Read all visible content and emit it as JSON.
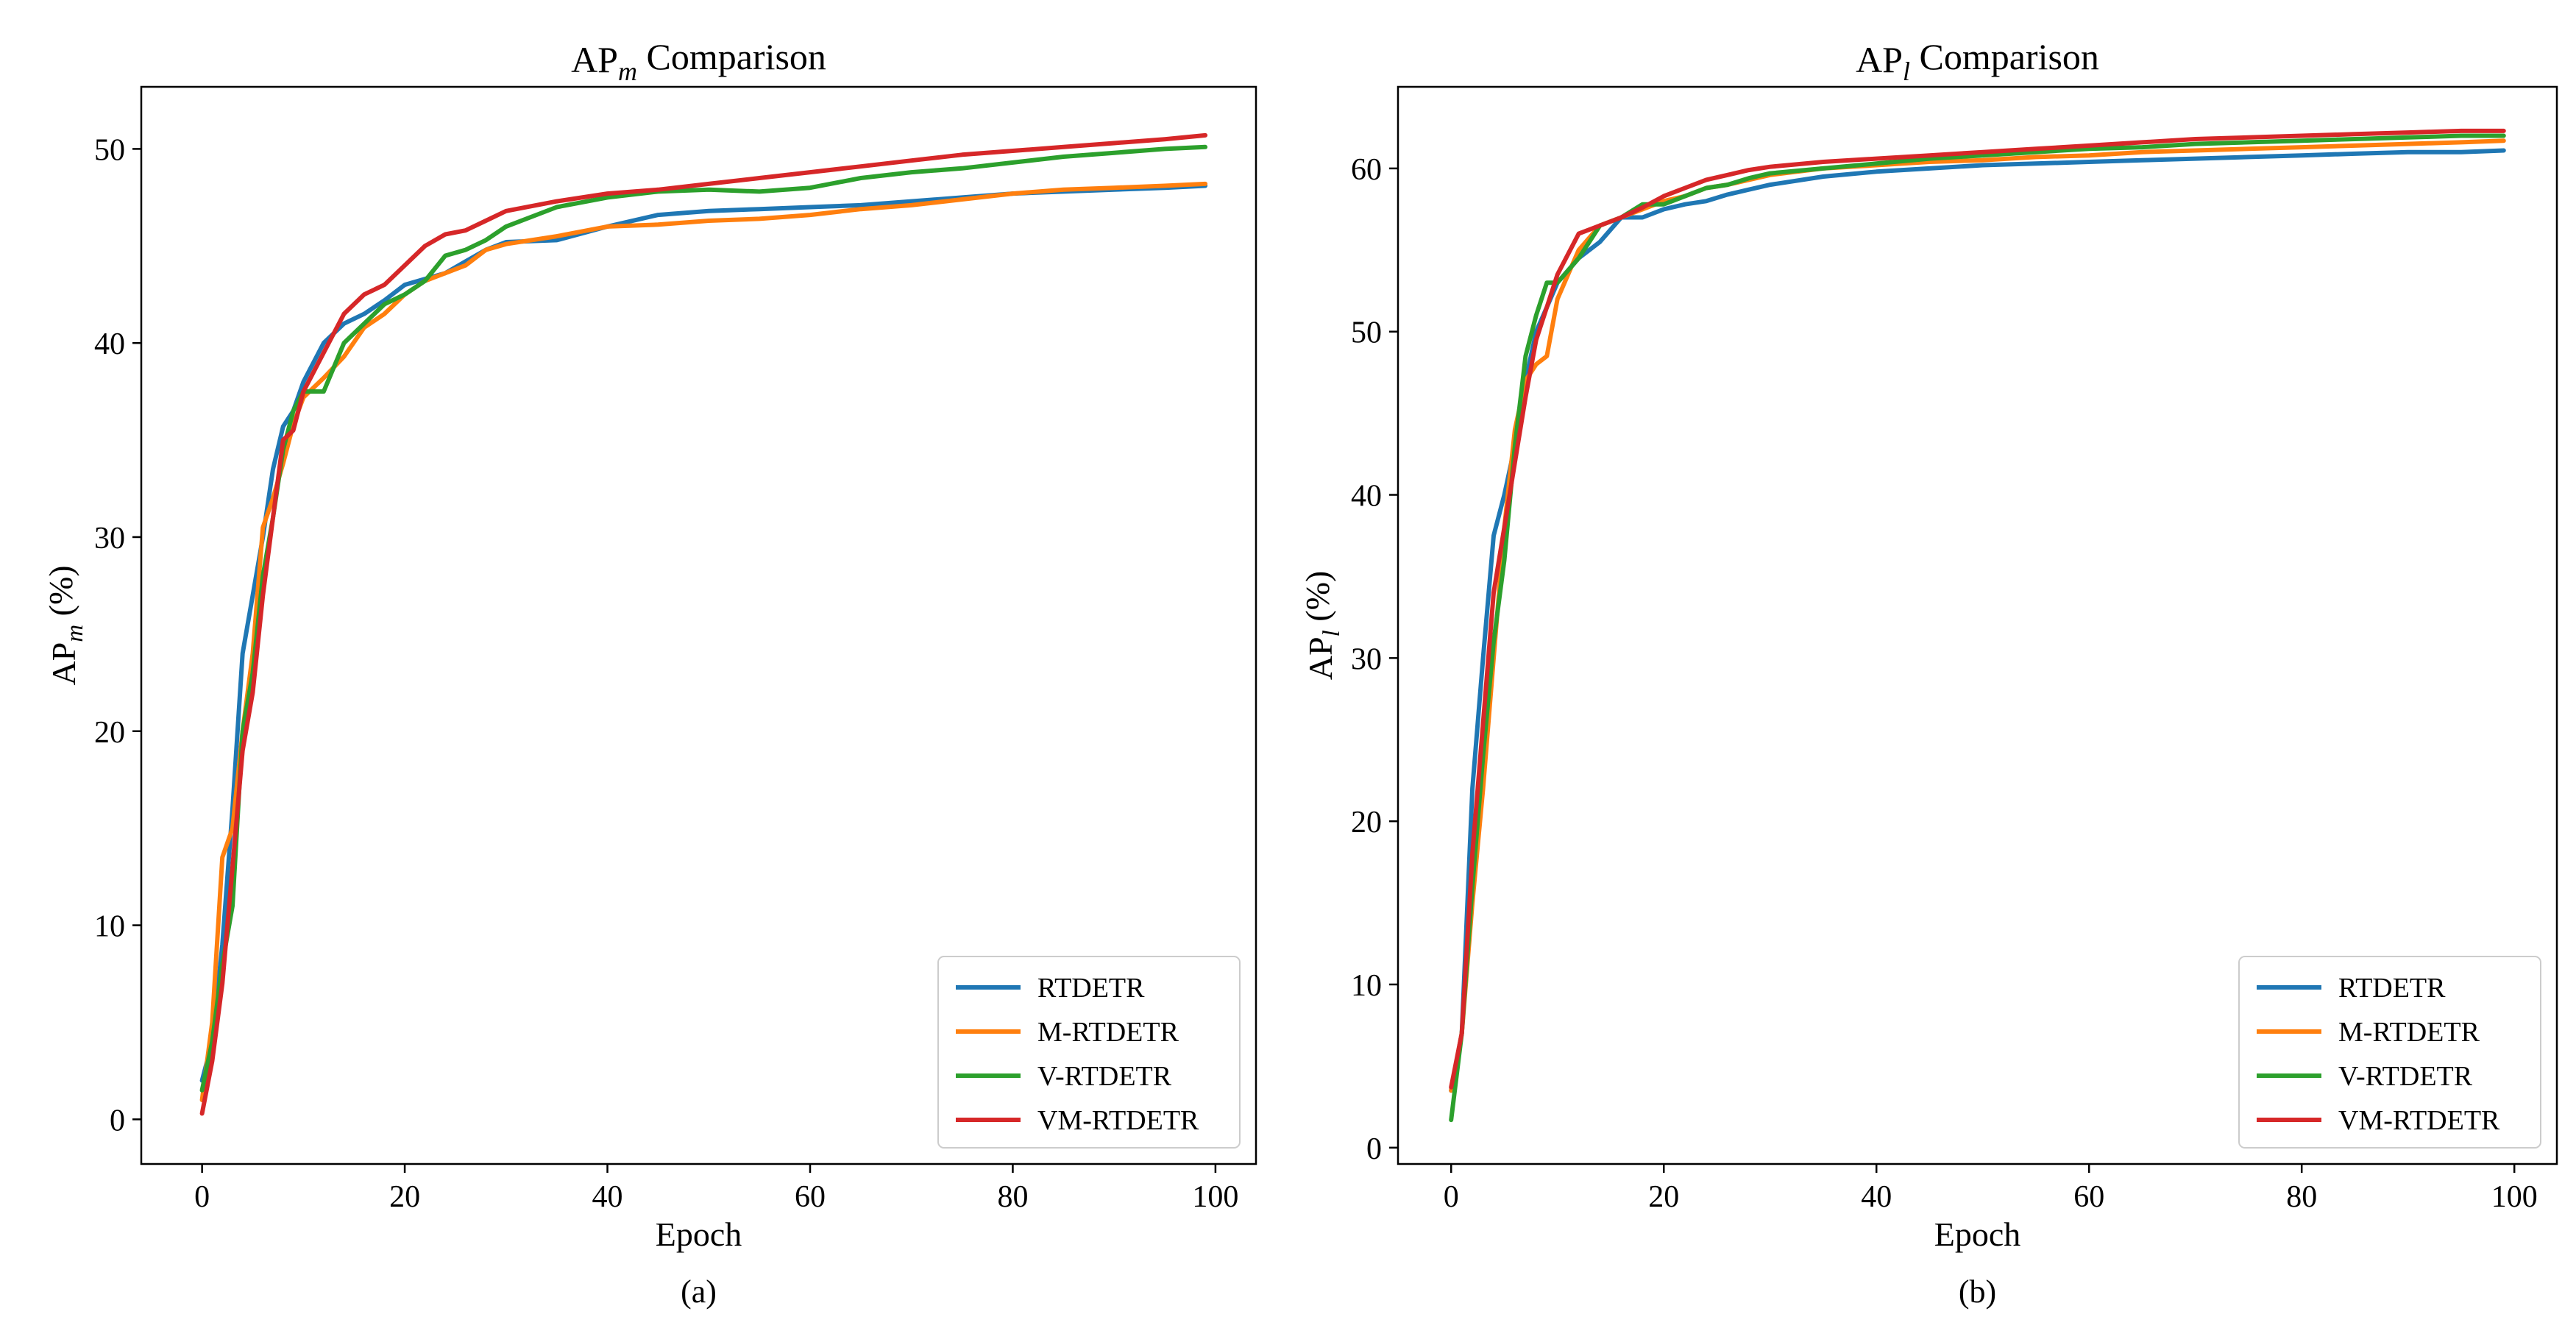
{
  "chart_data": [
    {
      "type": "line",
      "caption": "(a)",
      "title": {
        "prefix": "AP",
        "sub": "m",
        "suffix": " Comparison"
      },
      "ylabel": {
        "prefix": "AP",
        "sub": "m",
        "suffix": " (%)"
      },
      "xlabel": "Epoch",
      "xlim": [
        -6,
        104
      ],
      "ylim": [
        -2.3,
        53.2
      ],
      "xticks": [
        0,
        20,
        40,
        60,
        80,
        100
      ],
      "yticks": [
        0,
        10,
        20,
        30,
        40,
        50
      ],
      "legend": "lower-right",
      "series": [
        {
          "name": "RTDETR",
          "color": "#1f77b4",
          "x": [
            0,
            1,
            2,
            3,
            4,
            5,
            6,
            7,
            8,
            9,
            10,
            12,
            14,
            16,
            18,
            20,
            22,
            24,
            26,
            28,
            30,
            35,
            40,
            45,
            50,
            55,
            60,
            65,
            70,
            75,
            80,
            85,
            90,
            95,
            99
          ],
          "y": [
            2,
            4,
            9,
            16,
            24,
            27,
            30,
            33.5,
            35.7,
            36.5,
            38,
            40,
            41,
            41.5,
            42.2,
            43,
            43.3,
            43.6,
            44.2,
            44.8,
            45.2,
            45.3,
            46,
            46.6,
            46.8,
            46.9,
            47,
            47.1,
            47.3,
            47.5,
            47.7,
            47.8,
            47.9,
            48,
            48.1
          ]
        },
        {
          "name": "M-RTDETR",
          "color": "#ff7f0e",
          "x": [
            0,
            1,
            2,
            3,
            4,
            5,
            6,
            7,
            8,
            9,
            10,
            12,
            14,
            16,
            18,
            20,
            22,
            24,
            26,
            28,
            30,
            35,
            40,
            45,
            50,
            55,
            60,
            65,
            70,
            75,
            80,
            85,
            90,
            95,
            99
          ],
          "y": [
            1,
            5,
            13.5,
            15,
            20,
            24,
            30.5,
            32,
            33.8,
            35.8,
            37.2,
            38.2,
            39.3,
            40.8,
            41.5,
            42.5,
            43.2,
            43.6,
            44,
            44.8,
            45.1,
            45.5,
            46,
            46.1,
            46.3,
            46.4,
            46.6,
            46.9,
            47.1,
            47.4,
            47.7,
            47.9,
            48,
            48.1,
            48.2
          ]
        },
        {
          "name": "V-RTDETR",
          "color": "#2ca02c",
          "x": [
            0,
            1,
            2,
            3,
            4,
            5,
            6,
            7,
            8,
            9,
            10,
            12,
            14,
            16,
            18,
            20,
            22,
            24,
            26,
            28,
            30,
            35,
            40,
            45,
            50,
            55,
            60,
            65,
            70,
            75,
            80,
            85,
            90,
            95,
            99
          ],
          "y": [
            1.5,
            4,
            8,
            11,
            20,
            23,
            28,
            31,
            34.5,
            36.5,
            37.5,
            37.5,
            40,
            41,
            42,
            42.5,
            43.2,
            44.5,
            44.8,
            45.3,
            46,
            47,
            47.5,
            47.8,
            47.9,
            47.8,
            48,
            48.5,
            48.8,
            49,
            49.3,
            49.6,
            49.8,
            50,
            50.1
          ]
        },
        {
          "name": "VM-RTDETR",
          "color": "#d62728",
          "x": [
            0,
            1,
            2,
            3,
            4,
            5,
            6,
            7,
            8,
            9,
            10,
            12,
            14,
            16,
            18,
            20,
            22,
            24,
            26,
            28,
            30,
            35,
            40,
            45,
            50,
            55,
            60,
            65,
            70,
            75,
            80,
            85,
            90,
            95,
            99
          ],
          "y": [
            0.3,
            3,
            7,
            13,
            19,
            22,
            27,
            31,
            35,
            35.5,
            37.5,
            39.5,
            41.5,
            42.5,
            43,
            44,
            45,
            45.6,
            45.8,
            46.3,
            46.8,
            47.3,
            47.7,
            47.9,
            48.2,
            48.5,
            48.8,
            49.1,
            49.4,
            49.7,
            49.9,
            50.1,
            50.3,
            50.5,
            50.7
          ]
        }
      ]
    },
    {
      "type": "line",
      "caption": "(b)",
      "title": {
        "prefix": "AP",
        "sub": "l",
        "suffix": " Comparison"
      },
      "ylabel": {
        "prefix": "AP",
        "sub": "l",
        "suffix": " (%)"
      },
      "xlabel": "Epoch",
      "xlim": [
        -5,
        104
      ],
      "ylim": [
        -1.0,
        65.0
      ],
      "xticks": [
        0,
        20,
        40,
        60,
        80,
        100
      ],
      "yticks": [
        0,
        10,
        20,
        30,
        40,
        50,
        60
      ],
      "legend": "lower-right",
      "series": [
        {
          "name": "RTDETR",
          "color": "#1f77b4",
          "x": [
            0,
            1,
            2,
            3,
            4,
            5,
            6,
            7,
            8,
            9,
            10,
            12,
            14,
            16,
            18,
            20,
            22,
            24,
            26,
            28,
            30,
            35,
            40,
            45,
            50,
            55,
            60,
            65,
            70,
            75,
            80,
            85,
            90,
            95,
            99
          ],
          "y": [
            3.5,
            7,
            22,
            30,
            37.5,
            40,
            43,
            47,
            50,
            51.5,
            53,
            54.5,
            55.5,
            57,
            57,
            57.5,
            57.8,
            58,
            58.4,
            58.7,
            59,
            59.5,
            59.8,
            60,
            60.2,
            60.3,
            60.4,
            60.5,
            60.6,
            60.7,
            60.8,
            60.9,
            61,
            61,
            61.1
          ]
        },
        {
          "name": "M-RTDETR",
          "color": "#ff7f0e",
          "x": [
            0,
            1,
            2,
            3,
            4,
            5,
            6,
            7,
            8,
            9,
            10,
            12,
            14,
            16,
            18,
            20,
            22,
            24,
            26,
            28,
            30,
            35,
            40,
            45,
            50,
            55,
            60,
            65,
            70,
            75,
            80,
            85,
            90,
            95,
            99
          ],
          "y": [
            3.5,
            7,
            15,
            22,
            30,
            38,
            44,
            47,
            48,
            48.5,
            52,
            55,
            56.5,
            57,
            57.5,
            58,
            58.3,
            58.8,
            59,
            59.3,
            59.6,
            60,
            60.2,
            60.4,
            60.5,
            60.7,
            60.8,
            61,
            61.1,
            61.2,
            61.3,
            61.4,
            61.5,
            61.6,
            61.7
          ]
        },
        {
          "name": "V-RTDETR",
          "color": "#2ca02c",
          "x": [
            0,
            1,
            2,
            3,
            4,
            5,
            6,
            7,
            8,
            9,
            10,
            12,
            14,
            16,
            18,
            20,
            22,
            24,
            26,
            28,
            30,
            35,
            40,
            45,
            50,
            55,
            60,
            65,
            70,
            75,
            80,
            85,
            90,
            95,
            99
          ],
          "y": [
            1.7,
            7,
            16,
            24,
            31,
            36,
            43,
            48.5,
            51,
            53,
            53,
            54.5,
            56.5,
            57,
            57.8,
            57.8,
            58.3,
            58.8,
            59,
            59.4,
            59.7,
            60,
            60.3,
            60.6,
            60.8,
            61,
            61.2,
            61.3,
            61.5,
            61.6,
            61.7,
            61.8,
            61.9,
            62,
            62
          ]
        },
        {
          "name": "VM-RTDETR",
          "color": "#d62728",
          "x": [
            0,
            1,
            2,
            3,
            4,
            5,
            6,
            7,
            8,
            9,
            10,
            12,
            14,
            16,
            18,
            20,
            22,
            24,
            26,
            28,
            30,
            35,
            40,
            45,
            50,
            55,
            60,
            65,
            70,
            75,
            80,
            85,
            90,
            95,
            99
          ],
          "y": [
            3.7,
            7,
            18,
            26,
            34,
            38,
            42,
            46,
            49.5,
            51.5,
            53.5,
            56,
            56.5,
            57,
            57.6,
            58.3,
            58.8,
            59.3,
            59.6,
            59.9,
            60.1,
            60.4,
            60.6,
            60.8,
            61,
            61.2,
            61.4,
            61.6,
            61.8,
            61.9,
            62,
            62.1,
            62.2,
            62.3,
            62.3
          ]
        }
      ]
    }
  ]
}
